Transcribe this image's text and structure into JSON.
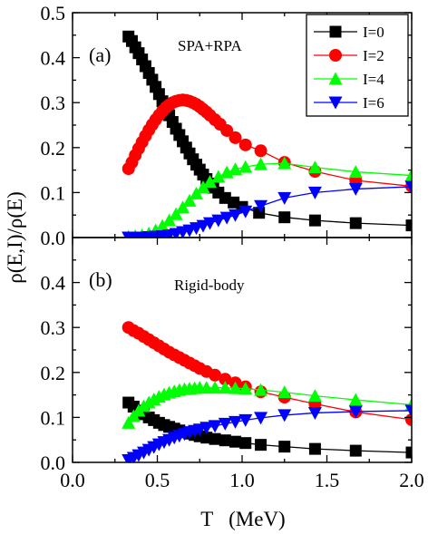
{
  "chart_data": [
    {
      "type": "line",
      "panel_label": "(a)",
      "annotation": "SPA+RPA",
      "xlim": [
        0.0,
        2.0
      ],
      "ylim": [
        0.0,
        0.5
      ],
      "ylabel": "ρ(E,I)/ρ(E)",
      "legend": "top-right",
      "y_ticks": [
        "0.0",
        "0.1",
        "0.2",
        "0.3",
        "0.4",
        "0.5"
      ],
      "series": [
        {
          "name": "I=0",
          "color": "#000000",
          "marker": "square",
          "x": [
            0.33,
            0.35,
            0.37,
            0.39,
            0.41,
            0.43,
            0.45,
            0.47,
            0.49,
            0.51,
            0.53,
            0.55,
            0.57,
            0.59,
            0.61,
            0.63,
            0.65,
            0.67,
            0.69,
            0.71,
            0.73,
            0.75,
            0.77,
            0.79,
            0.81,
            0.83,
            0.86,
            0.9,
            0.95,
            1.0,
            1.1,
            1.25,
            1.43,
            1.67,
            2.0
          ],
          "y": [
            0.447,
            0.437,
            0.423,
            0.41,
            0.396,
            0.381,
            0.366,
            0.351,
            0.335,
            0.319,
            0.303,
            0.287,
            0.272,
            0.257,
            0.242,
            0.228,
            0.214,
            0.2,
            0.187,
            0.174,
            0.162,
            0.151,
            0.14,
            0.13,
            0.12,
            0.111,
            0.1,
            0.088,
            0.078,
            0.068,
            0.055,
            0.045,
            0.038,
            0.032,
            0.027
          ]
        },
        {
          "name": "I=2",
          "color": "#ff0000",
          "marker": "circle",
          "x": [
            0.33,
            0.35,
            0.37,
            0.39,
            0.41,
            0.43,
            0.45,
            0.47,
            0.49,
            0.51,
            0.53,
            0.55,
            0.57,
            0.59,
            0.61,
            0.63,
            0.65,
            0.67,
            0.69,
            0.71,
            0.73,
            0.75,
            0.77,
            0.79,
            0.81,
            0.84,
            0.87,
            0.91,
            0.96,
            1.02,
            1.11,
            1.25,
            1.43,
            1.67,
            2.0
          ],
          "y": [
            0.153,
            0.167,
            0.183,
            0.198,
            0.212,
            0.226,
            0.239,
            0.251,
            0.262,
            0.272,
            0.281,
            0.289,
            0.295,
            0.3,
            0.303,
            0.305,
            0.306,
            0.305,
            0.303,
            0.3,
            0.296,
            0.291,
            0.285,
            0.279,
            0.272,
            0.262,
            0.252,
            0.238,
            0.222,
            0.206,
            0.193,
            0.167,
            0.147,
            0.127,
            0.114
          ]
        },
        {
          "name": "I=4",
          "color": "#00ff00",
          "marker": "triangle-up",
          "x": [
            0.33,
            0.37,
            0.41,
            0.45,
            0.49,
            0.53,
            0.57,
            0.61,
            0.65,
            0.69,
            0.73,
            0.77,
            0.81,
            0.86,
            0.91,
            0.96,
            1.02,
            1.11,
            1.25,
            1.43,
            1.67,
            2.0
          ],
          "y": [
            0.002,
            0.003,
            0.005,
            0.009,
            0.016,
            0.026,
            0.038,
            0.052,
            0.067,
            0.082,
            0.098,
            0.112,
            0.124,
            0.135,
            0.145,
            0.152,
            0.157,
            0.163,
            0.165,
            0.156,
            0.146,
            0.138
          ]
        },
        {
          "name": "I=6",
          "color": "#0000ff",
          "marker": "triangle-down",
          "x": [
            0.33,
            0.37,
            0.41,
            0.45,
            0.49,
            0.53,
            0.57,
            0.61,
            0.65,
            0.69,
            0.73,
            0.77,
            0.81,
            0.86,
            0.91,
            0.96,
            1.02,
            1.11,
            1.25,
            1.43,
            1.67,
            2.0
          ],
          "y": [
            0.0,
            0.0,
            0.0,
            0.001,
            0.002,
            0.003,
            0.005,
            0.008,
            0.012,
            0.016,
            0.021,
            0.026,
            0.032,
            0.038,
            0.044,
            0.05,
            0.058,
            0.07,
            0.088,
            0.1,
            0.108,
            0.113
          ]
        }
      ]
    },
    {
      "type": "line",
      "panel_label": "(b)",
      "annotation": "Rigid-body",
      "xlim": [
        0.0,
        2.0
      ],
      "ylim": [
        0.0,
        0.5
      ],
      "xlabel": "T   (MeV)",
      "x_ticks": [
        "0.0",
        "0.5",
        "1.0",
        "1.5",
        "2.0"
      ],
      "y_ticks": [
        "0.0",
        "0.1",
        "0.2",
        "0.3",
        "0.4"
      ],
      "series": [
        {
          "name": "I=0",
          "color": "#000000",
          "marker": "square",
          "x": [
            0.33,
            0.36,
            0.39,
            0.42,
            0.45,
            0.48,
            0.51,
            0.54,
            0.57,
            0.6,
            0.63,
            0.66,
            0.69,
            0.72,
            0.75,
            0.79,
            0.84,
            0.9,
            0.96,
            1.02,
            1.11,
            1.25,
            1.43,
            1.67,
            2.0
          ],
          "y": [
            0.133,
            0.124,
            0.115,
            0.107,
            0.1,
            0.094,
            0.088,
            0.083,
            0.079,
            0.075,
            0.071,
            0.067,
            0.064,
            0.061,
            0.058,
            0.055,
            0.052,
            0.049,
            0.046,
            0.043,
            0.039,
            0.035,
            0.03,
            0.026,
            0.022
          ]
        },
        {
          "name": "I=2",
          "color": "#ff0000",
          "marker": "circle",
          "x": [
            0.33,
            0.36,
            0.39,
            0.42,
            0.45,
            0.48,
            0.51,
            0.54,
            0.57,
            0.6,
            0.63,
            0.66,
            0.69,
            0.72,
            0.75,
            0.79,
            0.84,
            0.9,
            0.96,
            1.02,
            1.11,
            1.25,
            1.43,
            1.67,
            2.0
          ],
          "y": [
            0.3,
            0.293,
            0.287,
            0.28,
            0.273,
            0.266,
            0.259,
            0.252,
            0.245,
            0.239,
            0.233,
            0.227,
            0.221,
            0.215,
            0.209,
            0.202,
            0.194,
            0.185,
            0.177,
            0.168,
            0.157,
            0.145,
            0.13,
            0.112,
            0.095
          ]
        },
        {
          "name": "I=4",
          "color": "#00ff00",
          "marker": "triangle-up",
          "x": [
            0.33,
            0.36,
            0.39,
            0.42,
            0.45,
            0.48,
            0.51,
            0.54,
            0.57,
            0.6,
            0.63,
            0.66,
            0.69,
            0.72,
            0.75,
            0.79,
            0.84,
            0.9,
            0.96,
            1.02,
            1.11,
            1.25,
            1.43,
            1.67,
            2.0
          ],
          "y": [
            0.088,
            0.103,
            0.115,
            0.125,
            0.133,
            0.14,
            0.146,
            0.151,
            0.155,
            0.158,
            0.161,
            0.163,
            0.164,
            0.165,
            0.166,
            0.166,
            0.166,
            0.166,
            0.165,
            0.164,
            0.161,
            0.156,
            0.148,
            0.139,
            0.128
          ]
        },
        {
          "name": "I=6",
          "color": "#0000ff",
          "marker": "triangle-down",
          "x": [
            0.33,
            0.36,
            0.39,
            0.42,
            0.45,
            0.48,
            0.51,
            0.54,
            0.57,
            0.6,
            0.63,
            0.66,
            0.69,
            0.72,
            0.75,
            0.79,
            0.84,
            0.9,
            0.96,
            1.02,
            1.11,
            1.25,
            1.43,
            1.67,
            2.0
          ],
          "y": [
            0.005,
            0.01,
            0.016,
            0.022,
            0.028,
            0.034,
            0.04,
            0.045,
            0.05,
            0.055,
            0.059,
            0.063,
            0.067,
            0.07,
            0.073,
            0.077,
            0.081,
            0.086,
            0.09,
            0.094,
            0.099,
            0.105,
            0.11,
            0.113,
            0.115
          ]
        }
      ]
    }
  ]
}
